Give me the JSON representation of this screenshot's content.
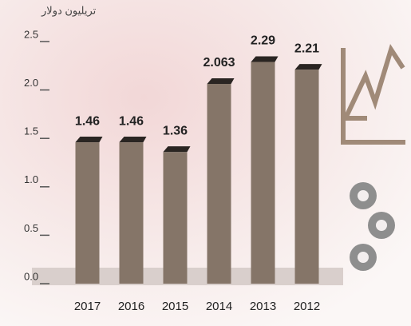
{
  "chart_data": {
    "type": "bar",
    "y_label": "تريليون دولار",
    "categories": [
      "2017",
      "2016",
      "2015",
      "2014",
      "2013",
      "2012"
    ],
    "values": [
      1.46,
      1.46,
      1.36,
      2.063,
      2.29,
      2.21
    ],
    "value_labels": [
      "1.46",
      "1.46",
      "1.36",
      "2.063",
      "2.29",
      "2.21"
    ],
    "color": "#857568",
    "ylim": [
      0,
      2.5
    ],
    "yticks": [
      {
        "value": 0,
        "label": "0.0"
      },
      0.5,
      {
        "value": 1,
        "label": "1.0"
      },
      1.5,
      {
        "value": 2,
        "label": "2.0"
      },
      2.5
    ]
  }
}
